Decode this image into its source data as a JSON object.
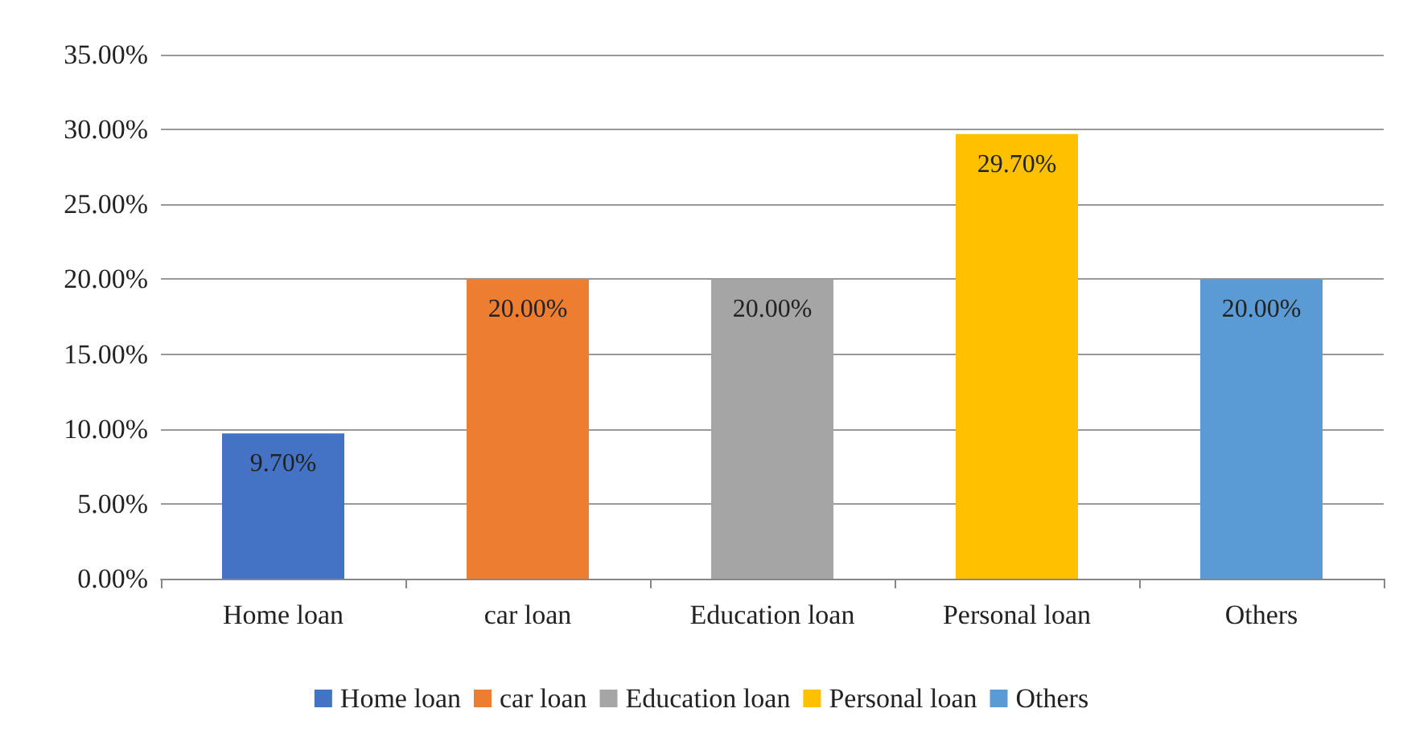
{
  "chart_data": {
    "type": "bar",
    "categories": [
      "Home loan",
      "car loan",
      "Education loan",
      "Personal loan",
      "Others"
    ],
    "series": [
      {
        "name": "Home loan",
        "color": "#4472c4",
        "values": [
          9.7,
          null,
          null,
          null,
          null
        ],
        "value_labels": [
          "9.70%",
          null,
          null,
          null,
          null
        ]
      },
      {
        "name": "car loan",
        "color": "#ed7d31",
        "values": [
          null,
          20.0,
          null,
          null,
          null
        ],
        "value_labels": [
          null,
          "20.00%",
          null,
          null,
          null
        ]
      },
      {
        "name": "Education loan",
        "color": "#a5a5a5",
        "values": [
          null,
          null,
          20.0,
          null,
          null
        ],
        "value_labels": [
          null,
          null,
          "20.00%",
          null,
          null
        ]
      },
      {
        "name": "Personal loan",
        "color": "#ffc000",
        "values": [
          null,
          null,
          null,
          29.7,
          null
        ],
        "value_labels": [
          null,
          null,
          null,
          "29.70%",
          null
        ]
      },
      {
        "name": "Others",
        "color": "#5b9bd5",
        "values": [
          null,
          null,
          null,
          null,
          20.0
        ],
        "value_labels": [
          null,
          null,
          null,
          null,
          "20.00%"
        ]
      }
    ],
    "ylim": [
      0,
      35
    ],
    "yticks": [
      {
        "value": 0,
        "label": "0.00%"
      },
      {
        "value": 5,
        "label": "5.00%"
      },
      {
        "value": 10,
        "label": "10.00%"
      },
      {
        "value": 15,
        "label": "15.00%"
      },
      {
        "value": 20,
        "label": "20.00%"
      },
      {
        "value": 25,
        "label": "25.00%"
      },
      {
        "value": 30,
        "label": "30.00%"
      },
      {
        "value": 35,
        "label": "35.00%"
      }
    ],
    "grid": "y",
    "legend": "bottom"
  }
}
